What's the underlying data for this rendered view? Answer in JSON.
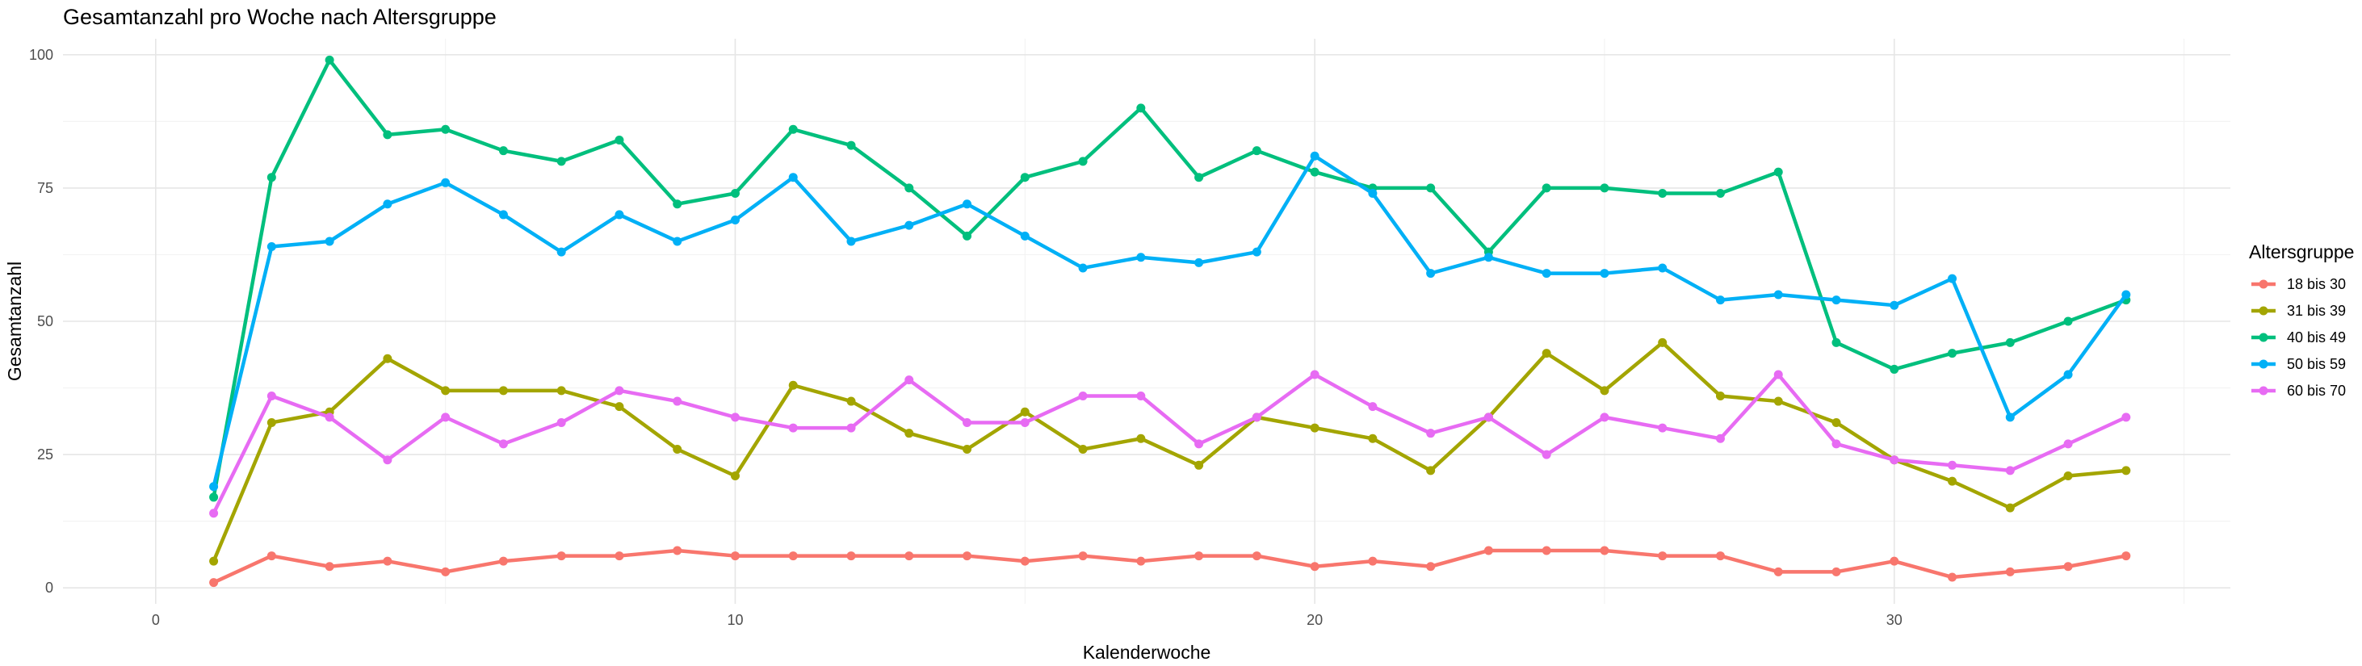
{
  "chart_data": {
    "type": "line",
    "title": "Gesamtanzahl pro Woche nach Altersgruppe",
    "xlabel": "Kalenderwoche",
    "ylabel": "Gesamtanzahl",
    "xlim": [
      -1.6,
      35.8
    ],
    "ylim": [
      -3,
      103
    ],
    "xticks": [
      0,
      10,
      20,
      30
    ],
    "yticks": [
      0,
      25,
      50,
      75,
      100
    ],
    "grid": true,
    "legend_title": "Altersgruppe",
    "legend_position": "right",
    "x": [
      1,
      2,
      3,
      4,
      5,
      6,
      7,
      8,
      9,
      10,
      11,
      12,
      13,
      14,
      15,
      16,
      17,
      18,
      19,
      20,
      21,
      22,
      23,
      24,
      25,
      26,
      27,
      28,
      29,
      30,
      31,
      32,
      33,
      34
    ],
    "series": [
      {
        "name": "18 bis 30",
        "color": "#F8766D",
        "values": [
          1,
          6,
          4,
          5,
          3,
          5,
          6,
          6,
          7,
          6,
          6,
          6,
          6,
          6,
          5,
          6,
          5,
          6,
          6,
          4,
          5,
          4,
          7,
          7,
          7,
          6,
          6,
          3,
          3,
          5,
          2,
          3,
          4,
          6
        ]
      },
      {
        "name": "31 bis 39",
        "color": "#A3A500",
        "values": [
          5,
          31,
          33,
          43,
          37,
          37,
          37,
          34,
          26,
          21,
          38,
          35,
          29,
          26,
          33,
          26,
          28,
          23,
          32,
          30,
          28,
          22,
          32,
          44,
          37,
          46,
          36,
          35,
          31,
          24,
          20,
          15,
          21,
          22
        ]
      },
      {
        "name": "40 bis 49",
        "color": "#00BF7D",
        "values": [
          17,
          77,
          99,
          85,
          86,
          82,
          80,
          84,
          72,
          74,
          86,
          83,
          75,
          66,
          77,
          80,
          90,
          77,
          82,
          78,
          75,
          75,
          63,
          75,
          75,
          74,
          74,
          78,
          46,
          41,
          44,
          46,
          50,
          54
        ]
      },
      {
        "name": "50 bis 59",
        "color": "#00B0F6",
        "values": [
          19,
          64,
          65,
          72,
          76,
          70,
          63,
          70,
          65,
          69,
          77,
          65,
          68,
          72,
          66,
          60,
          62,
          61,
          63,
          81,
          74,
          59,
          62,
          59,
          59,
          60,
          54,
          55,
          54,
          53,
          58,
          32,
          40,
          55
        ]
      },
      {
        "name": "60 bis 70",
        "color": "#E76BF3",
        "values": [
          14,
          36,
          32,
          24,
          32,
          27,
          31,
          37,
          35,
          32,
          30,
          30,
          39,
          31,
          31,
          36,
          36,
          27,
          32,
          40,
          34,
          29,
          32,
          25,
          32,
          30,
          28,
          40,
          27,
          24,
          23,
          22,
          27,
          32
        ]
      }
    ]
  }
}
